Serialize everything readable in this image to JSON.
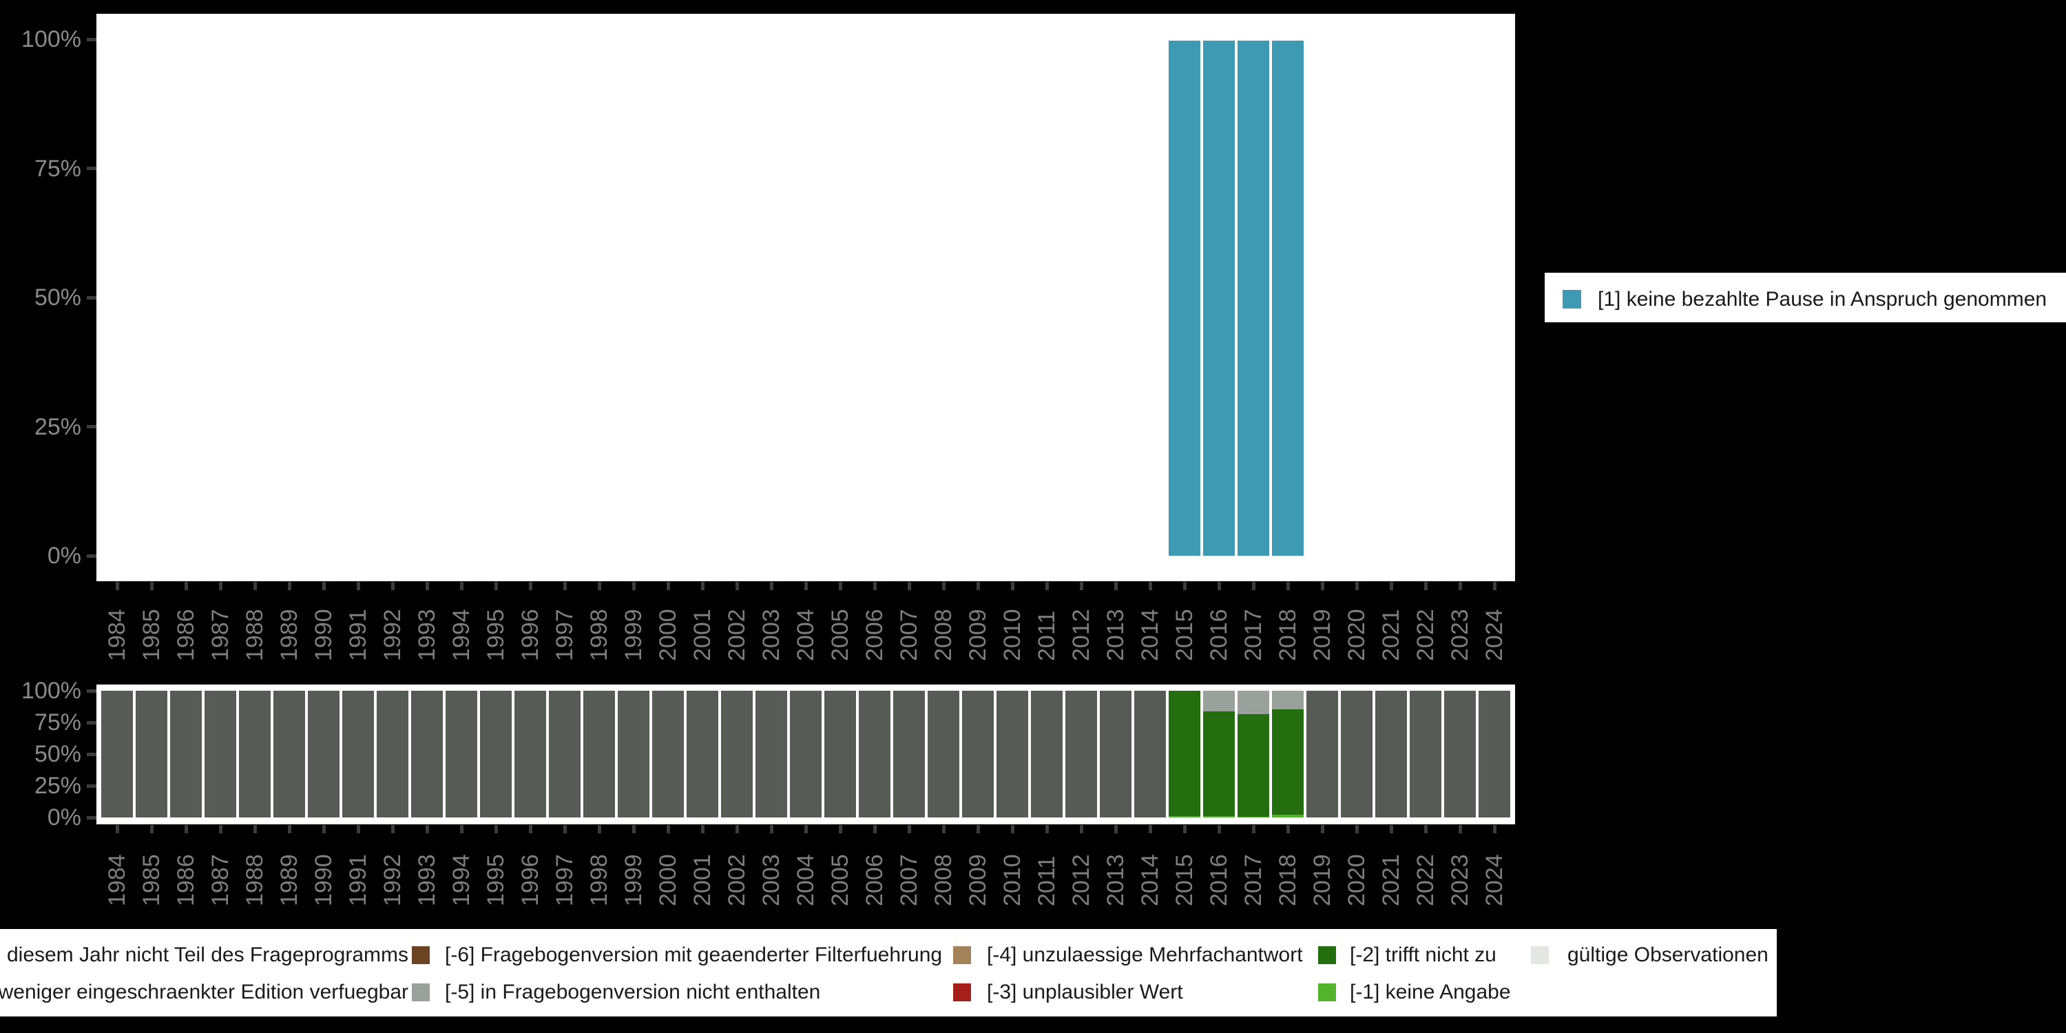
{
  "background_color": "#000000",
  "panel_color": "#FFFFFF",
  "axis": {
    "y_tick_labels": [
      "100%",
      "75%",
      "50%",
      "25%",
      "0%"
    ],
    "y_tick_values": [
      100,
      75,
      50,
      25,
      0
    ],
    "years": [
      1984,
      1985,
      1986,
      1987,
      1988,
      1989,
      1990,
      1991,
      1992,
      1993,
      1994,
      1995,
      1996,
      1997,
      1998,
      1999,
      2000,
      2001,
      2002,
      2003,
      2004,
      2005,
      2006,
      2007,
      2008,
      2009,
      2010,
      2011,
      2012,
      2013,
      2014,
      2015,
      2016,
      2017,
      2018,
      2019,
      2020,
      2021,
      2022,
      2023,
      2024
    ],
    "label_color": "#7e7e7e",
    "tick_color": "#3c3c3c"
  },
  "chart_data": [
    {
      "type": "bar",
      "title": "",
      "xlabel": "",
      "ylabel": "",
      "ylim": [
        0,
        100
      ],
      "categories": [
        2015,
        2016,
        2017,
        2018
      ],
      "series": [
        {
          "name": "[1] keine bezahlte Pause in Anspruch genommen",
          "color": "#3D9AB2",
          "values": {
            "2015": 100,
            "2016": 100,
            "2017": 100,
            "2018": 100
          }
        }
      ],
      "legend_position": "right",
      "grid": false
    },
    {
      "type": "bar",
      "title": "",
      "xlabel": "",
      "ylabel": "",
      "ylim": [
        0,
        100
      ],
      "categories": [
        1984,
        1985,
        1986,
        1987,
        1988,
        1989,
        1990,
        1991,
        1992,
        1993,
        1994,
        1995,
        1996,
        1997,
        1998,
        1999,
        2000,
        2001,
        2002,
        2003,
        2004,
        2005,
        2006,
        2007,
        2008,
        2009,
        2010,
        2011,
        2012,
        2013,
        2014,
        2015,
        2016,
        2017,
        2018,
        2019,
        2020,
        2021,
        2022,
        2023,
        2024
      ],
      "default_stack": [
        {
          "category": "in diesem Jahr nicht Teil des Frageprogramms",
          "color": "#565C55",
          "value": 100
        }
      ],
      "year_stacks": {
        "2015": [
          {
            "category": "[-2] trifft nicht zu",
            "color": "#256E10",
            "value": 98.8
          },
          {
            "category": "[-1] keine Angabe",
            "color": "#54B32D",
            "value": 1.2
          }
        ],
        "2016": [
          {
            "category": "[-5] in Fragebogenversion nicht enthalten",
            "color": "#9AA09B",
            "value": 16.3
          },
          {
            "category": "[-2] trifft nicht zu",
            "color": "#256E10",
            "value": 82.6
          },
          {
            "category": "[-1] keine Angabe",
            "color": "#54B32D",
            "value": 1.1
          }
        ],
        "2017": [
          {
            "category": "[-5] in Fragebogenversion nicht enthalten",
            "color": "#9AA09B",
            "value": 18.4
          },
          {
            "category": "[-2] trifft nicht zu",
            "color": "#256E10",
            "value": 81.1
          },
          {
            "category": "[-1] keine Angabe",
            "color": "#54B32D",
            "value": 0.5
          }
        ],
        "2018": [
          {
            "category": "[-5] in Fragebogenversion nicht enthalten",
            "color": "#9AA09B",
            "value": 14.8
          },
          {
            "category": "[-2] trifft nicht zu",
            "color": "#256E10",
            "value": 83.0
          },
          {
            "category": "[-1] keine Angabe",
            "color": "#54B32D",
            "value": 2.2
          }
        ]
      },
      "legend_position": "bottom",
      "grid": false
    }
  ],
  "top_legend": {
    "items": [
      {
        "label": "[1] keine bezahlte Pause in Anspruch genommen",
        "color": "#3D9AB2"
      }
    ]
  },
  "bottom_legend": {
    "rows": [
      [
        {
          "label": "in diesem Jahr nicht Teil des Frageprogramms",
          "color": "#565C55",
          "swatch_visible": false
        },
        {
          "label": "[-6] Fragebogenversion mit geaenderter Filterfuehrung",
          "color": "#6B4423",
          "swatch_visible": true
        },
        {
          "label": "[-4] unzulaessige Mehrfachantwort",
          "color": "#A5835A",
          "swatch_visible": true
        },
        {
          "label": "[-2] trifft nicht zu",
          "color": "#256E10",
          "swatch_visible": true
        },
        {
          "label": "gültige Observationen",
          "color": "#E3E6E1",
          "swatch_visible": true
        }
      ],
      [
        {
          "label": "in weniger eingeschraenkter Edition verfuegbar",
          "color": null,
          "swatch_visible": false
        },
        {
          "label": "[-5] in Fragebogenversion nicht enthalten",
          "color": "#9AA09B",
          "swatch_visible": true
        },
        {
          "label": "[-3] unplausibler Wert",
          "color": "#A51F1B",
          "swatch_visible": true
        },
        {
          "label": "[-1] keine Angabe",
          "color": "#54B32D",
          "swatch_visible": true
        }
      ]
    ]
  }
}
